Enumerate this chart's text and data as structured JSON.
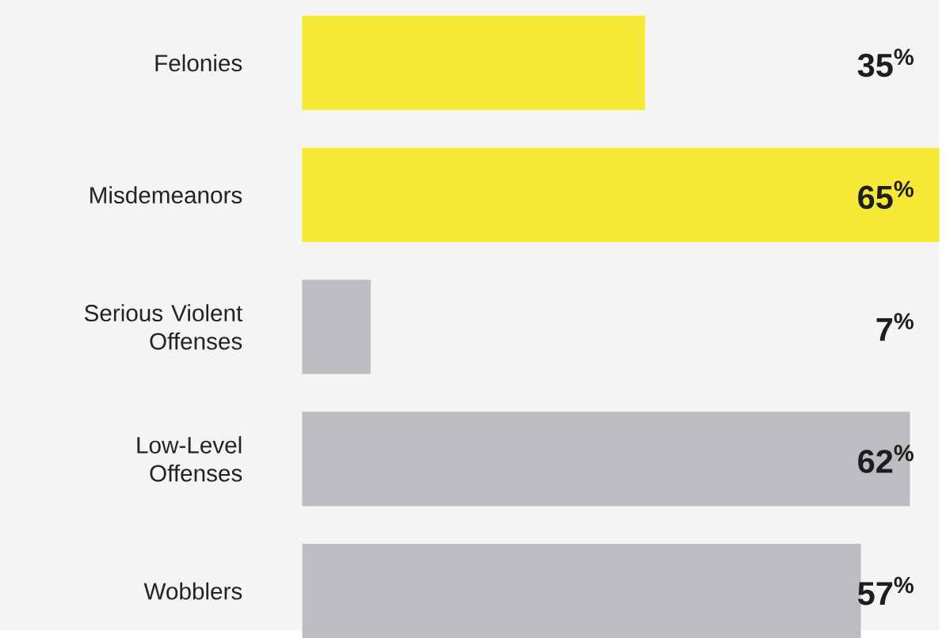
{
  "chart_data": {
    "type": "bar",
    "orientation": "horizontal",
    "categories": [
      "Felonies",
      "Misdemeanors",
      "Serious Violent Offenses",
      "Low-Level Offenses",
      "Wobblers"
    ],
    "values": [
      35,
      65,
      7,
      62,
      57
    ],
    "colors": [
      "#f5e935",
      "#f5e935",
      "#bcbdc0",
      "#bcbdc0",
      "#bcbdc0"
    ],
    "value_labels": [
      "35$^{%}$",
      "65$^{%}$",
      "7$^{%}$",
      "62$^{%}$",
      "57$^{%}$"
    ]
  }
}
